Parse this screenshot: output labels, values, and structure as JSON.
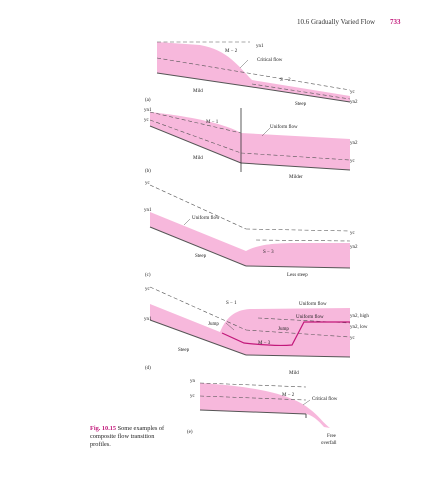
{
  "header": {
    "title": "10.6 Gradually Varied Flow",
    "page": "733"
  },
  "caption": {
    "number": "Fig. 10.15",
    "text": "Some examples of composite flow transition profiles."
  },
  "colors": {
    "water": "#f7b8dc",
    "accent": "#c2187a",
    "bed": "#555555"
  },
  "panels": {
    "a": {
      "label": "(a)",
      "yn1": "yn1",
      "m2": "M − 2",
      "critical": "Critical flow",
      "s2": "S − 2",
      "mild": "Mild",
      "yc": "yc",
      "yn2": "yn2",
      "steep": "Steep"
    },
    "b": {
      "label": "(b)",
      "yn1": "yn1",
      "yc_left": "yc",
      "m1": "M − 1",
      "uniform": "Uniform flow",
      "yn2": "yn2",
      "yc_right": "yc",
      "mild": "Mild",
      "milder": "Milder"
    },
    "c": {
      "label": "(c)",
      "yc_left": "yc",
      "yn1": "yn1",
      "uniform": "Uniform flow",
      "yc_right": "yc",
      "yn2": "yn2",
      "s3": "S − 3",
      "steep": "Steep",
      "less_steep": "Less steep"
    },
    "d": {
      "label": "(d)",
      "yc_left": "yc",
      "s1": "S − 1",
      "uniform_top": "Uniform flow",
      "yn1": "yn1",
      "uniform_low": "Uniform flow",
      "yn2_high": "yn2, high",
      "jump_left": "Jump",
      "jump_right": "Jump",
      "yn2_low": "yn2, low",
      "m3": "M − 3",
      "yc_right": "yc",
      "steep": "Steep",
      "mild": "Mild"
    },
    "e": {
      "label": "(e)",
      "yn": "yn",
      "yc": "yc",
      "m2": "M − 2",
      "critical": "Critical flow",
      "free": "Free",
      "overfall": "overfall"
    }
  }
}
